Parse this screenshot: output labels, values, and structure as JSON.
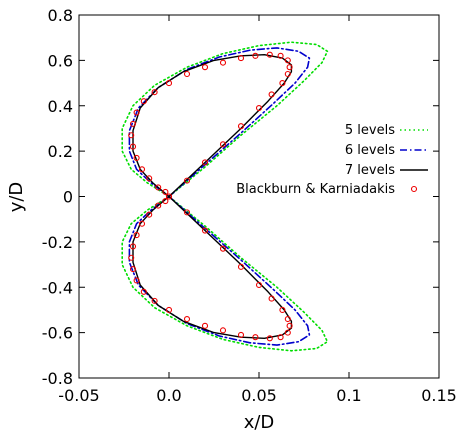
{
  "chart_data": {
    "type": "line",
    "title": "",
    "xlabel": "x/D",
    "ylabel": "y/D",
    "xlim": [
      -0.05,
      0.15
    ],
    "ylim": [
      -0.8,
      0.8
    ],
    "xticks": [
      -0.05,
      0.0,
      0.05,
      0.1,
      0.15
    ],
    "xtick_labels": [
      "-0.05",
      "0.0",
      "0.05",
      "0.1",
      "0.15"
    ],
    "yticks": [
      -0.8,
      -0.6,
      -0.4,
      -0.2,
      0,
      0.2,
      0.4,
      0.6,
      0.8
    ],
    "ytick_labels": [
      "-0.8",
      "-0.6",
      "-0.4",
      "-0.2",
      "0",
      "0.2",
      "0.4",
      "0.6",
      "0.8"
    ],
    "grid": false,
    "legend_position": "right",
    "series": [
      {
        "name": "5 levels",
        "color": "#00dd00",
        "style": "dotted",
        "x": [
          0.0,
          0.02,
          0.04,
          0.06,
          0.075,
          0.085,
          0.088,
          0.082,
          0.068,
          0.05,
          0.03,
          0.01,
          -0.008,
          -0.02,
          -0.026,
          -0.026,
          -0.021,
          -0.012,
          0.0,
          -0.012,
          -0.021,
          -0.026,
          -0.026,
          -0.02,
          -0.008,
          0.01,
          0.03,
          0.05,
          0.068,
          0.082,
          0.088,
          0.085,
          0.075,
          0.06,
          0.04,
          0.02,
          0.0
        ],
        "y": [
          0.0,
          0.13,
          0.27,
          0.4,
          0.51,
          0.59,
          0.64,
          0.67,
          0.68,
          0.665,
          0.63,
          0.57,
          0.49,
          0.4,
          0.3,
          0.2,
          0.12,
          0.06,
          0.0,
          -0.06,
          -0.12,
          -0.2,
          -0.3,
          -0.4,
          -0.49,
          -0.57,
          -0.63,
          -0.665,
          -0.68,
          -0.67,
          -0.64,
          -0.59,
          -0.51,
          -0.4,
          -0.27,
          -0.13,
          0.0
        ]
      },
      {
        "name": "6 levels",
        "color": "#0000cc",
        "style": "dashdot",
        "x": [
          0.0,
          0.02,
          0.04,
          0.058,
          0.07,
          0.077,
          0.078,
          0.072,
          0.06,
          0.045,
          0.028,
          0.01,
          -0.006,
          -0.017,
          -0.022,
          -0.022,
          -0.018,
          -0.01,
          0.0,
          -0.01,
          -0.018,
          -0.022,
          -0.022,
          -0.017,
          -0.006,
          0.01,
          0.028,
          0.045,
          0.06,
          0.072,
          0.078,
          0.077,
          0.07,
          0.058,
          0.04,
          0.02,
          0.0
        ],
        "y": [
          0.0,
          0.14,
          0.28,
          0.41,
          0.5,
          0.57,
          0.61,
          0.64,
          0.655,
          0.645,
          0.615,
          0.56,
          0.48,
          0.39,
          0.29,
          0.2,
          0.12,
          0.06,
          0.0,
          -0.06,
          -0.12,
          -0.2,
          -0.29,
          -0.39,
          -0.48,
          -0.56,
          -0.615,
          -0.645,
          -0.655,
          -0.64,
          -0.61,
          -0.57,
          -0.5,
          -0.41,
          -0.28,
          -0.14,
          0.0
        ]
      },
      {
        "name": "7 levels",
        "color": "#000000",
        "style": "solid",
        "x": [
          0.0,
          0.02,
          0.04,
          0.055,
          0.064,
          0.068,
          0.068,
          0.063,
          0.053,
          0.04,
          0.025,
          0.008,
          -0.006,
          -0.016,
          -0.02,
          -0.02,
          -0.016,
          -0.009,
          0.0,
          -0.009,
          -0.016,
          -0.02,
          -0.02,
          -0.016,
          -0.006,
          0.008,
          0.025,
          0.04,
          0.053,
          0.063,
          0.068,
          0.068,
          0.064,
          0.055,
          0.04,
          0.02,
          0.0
        ],
        "y": [
          0.0,
          0.15,
          0.3,
          0.42,
          0.5,
          0.55,
          0.58,
          0.61,
          0.625,
          0.62,
          0.6,
          0.55,
          0.48,
          0.39,
          0.29,
          0.2,
          0.12,
          0.06,
          0.0,
          -0.06,
          -0.12,
          -0.2,
          -0.29,
          -0.39,
          -0.48,
          -0.55,
          -0.6,
          -0.62,
          -0.625,
          -0.61,
          -0.58,
          -0.55,
          -0.5,
          -0.42,
          -0.3,
          -0.15,
          0.0
        ]
      },
      {
        "name": "Blackburn & Karniadakis",
        "color": "#ee0000",
        "style": "markers",
        "x": [
          0.0,
          0.01,
          0.02,
          0.03,
          0.04,
          0.05,
          0.057,
          0.063,
          0.066,
          0.067,
          0.066,
          0.062,
          0.056,
          0.048,
          0.04,
          0.03,
          0.02,
          0.01,
          0.0,
          -0.008,
          -0.014,
          -0.018,
          -0.02,
          -0.021,
          -0.02,
          -0.018,
          -0.015,
          -0.011,
          -0.006,
          -0.002,
          0.0,
          -0.002,
          -0.006,
          -0.011,
          -0.015,
          -0.018,
          -0.02,
          -0.021,
          -0.02,
          -0.018,
          -0.014,
          -0.008,
          0.0,
          0.01,
          0.02,
          0.03,
          0.04,
          0.048,
          0.056,
          0.062,
          0.066,
          0.067,
          0.066,
          0.063,
          0.057,
          0.05,
          0.04,
          0.03,
          0.02,
          0.01
        ],
        "y": [
          0.0,
          0.07,
          0.15,
          0.23,
          0.31,
          0.39,
          0.45,
          0.5,
          0.54,
          0.57,
          0.6,
          0.62,
          0.625,
          0.62,
          0.61,
          0.59,
          0.57,
          0.54,
          0.5,
          0.46,
          0.42,
          0.37,
          0.32,
          0.27,
          0.22,
          0.17,
          0.12,
          0.08,
          0.04,
          0.02,
          0.0,
          -0.02,
          -0.04,
          -0.08,
          -0.12,
          -0.17,
          -0.22,
          -0.27,
          -0.32,
          -0.37,
          -0.42,
          -0.46,
          -0.5,
          -0.54,
          -0.57,
          -0.59,
          -0.61,
          -0.62,
          -0.625,
          -0.62,
          -0.6,
          -0.57,
          -0.54,
          -0.5,
          -0.45,
          -0.39,
          -0.31,
          -0.23,
          -0.15,
          -0.07
        ]
      }
    ]
  }
}
